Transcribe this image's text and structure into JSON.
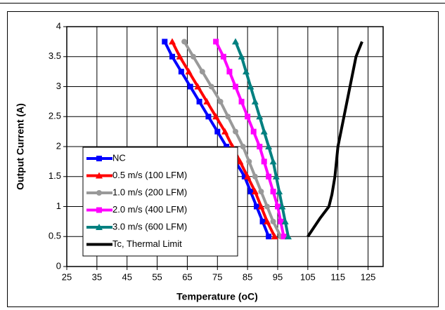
{
  "chart_data": {
    "type": "line",
    "xlabel": "Temperature (oC)",
    "ylabel": "Output Current (A)",
    "xlim": [
      25,
      130
    ],
    "xticks": [
      25,
      35,
      45,
      55,
      65,
      75,
      85,
      95,
      105,
      115,
      125
    ],
    "ylim": [
      0,
      4
    ],
    "yticks": [
      0,
      0.5,
      1,
      1.5,
      2,
      2.5,
      3,
      3.5,
      4
    ],
    "grid": true,
    "legend": "lower left",
    "series": [
      {
        "name": "NC",
        "color": "#0000ff",
        "marker": "square",
        "x": [
          57.5,
          60,
          63,
          66,
          69,
          72,
          75,
          78,
          81,
          84,
          86,
          88,
          90,
          92
        ],
        "values": [
          3.75,
          3.5,
          3.25,
          3,
          2.75,
          2.5,
          2.25,
          2,
          1.75,
          1.5,
          1.25,
          1,
          0.75,
          0.5
        ]
      },
      {
        "name": "0.5 m/s (100 LFM)",
        "color": "#ff0000",
        "marker": "triangle",
        "x": [
          60,
          62.5,
          65.5,
          68.5,
          71.5,
          74.5,
          77.5,
          80,
          82.5,
          85,
          87.5,
          89.5,
          91.5,
          94
        ],
        "values": [
          3.75,
          3.5,
          3.25,
          3,
          2.75,
          2.5,
          2.25,
          2,
          1.75,
          1.5,
          1.25,
          1,
          0.75,
          0.5
        ]
      },
      {
        "name": "1.0 m/s (200 LFM)",
        "color": "#999999",
        "marker": "circle",
        "x": [
          64,
          67,
          70,
          73,
          76,
          78.5,
          81,
          83.5,
          85.5,
          87.5,
          89.5,
          91.5,
          93.5,
          96
        ],
        "values": [
          3.75,
          3.5,
          3.25,
          3,
          2.75,
          2.5,
          2.25,
          2,
          1.75,
          1.5,
          1.25,
          1,
          0.75,
          0.5
        ]
      },
      {
        "name": "2.0 m/s (400 LFM)",
        "color": "#ff00ff",
        "marker": "square",
        "x": [
          74.5,
          77,
          79,
          81,
          83,
          85,
          87,
          89,
          90.5,
          92,
          93.5,
          95,
          96,
          97
        ],
        "values": [
          3.75,
          3.5,
          3.25,
          3,
          2.75,
          2.5,
          2.25,
          2,
          1.75,
          1.5,
          1.25,
          1,
          0.75,
          0.5
        ]
      },
      {
        "name": "3.0 m/s (600 LFM)",
        "color": "#008080",
        "marker": "triangle",
        "x": [
          81,
          83,
          84.5,
          86,
          87.5,
          89,
          90.5,
          92,
          93.5,
          94.5,
          95.5,
          96.5,
          97.5,
          98.5
        ],
        "values": [
          3.75,
          3.5,
          3.25,
          3,
          2.75,
          2.5,
          2.25,
          2,
          1.75,
          1.5,
          1.25,
          1,
          0.75,
          0.5
        ]
      },
      {
        "name": "Tc, Thermal Limit",
        "color": "#000000",
        "marker": "none",
        "x": [
          105,
          109,
          112,
          113,
          114,
          115,
          117,
          119,
          121,
          123
        ],
        "values": [
          0.5,
          0.8,
          1,
          1.2,
          1.5,
          2,
          2.5,
          3,
          3.5,
          3.75
        ]
      }
    ]
  }
}
